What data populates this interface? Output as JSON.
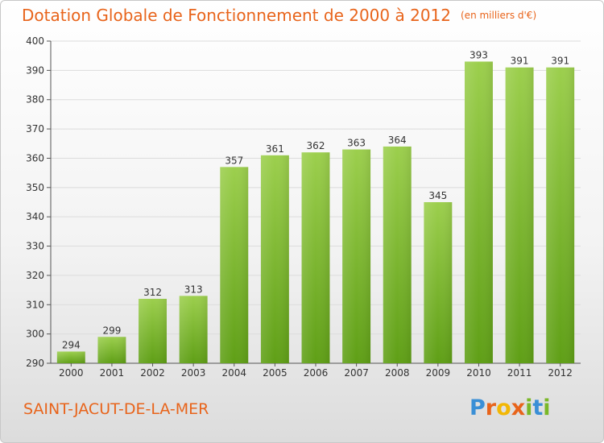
{
  "header": {
    "title": "Dotation Globale de Fonctionnement de 2000 à 2012",
    "subtitle": "(en milliers d'€)"
  },
  "footer": {
    "city": "SAINT-JACUT-DE-LA-MER"
  },
  "logo": {
    "text": "Proxiti",
    "letters": [
      {
        "char": "P",
        "color": "#3a8fd6"
      },
      {
        "char": "r",
        "color": "#e8641b"
      },
      {
        "char": "o",
        "color": "#f2b705"
      },
      {
        "char": "x",
        "color": "#e8641b"
      },
      {
        "char": "i",
        "color": "#7ab828"
      },
      {
        "char": "t",
        "color": "#3a8fd6"
      },
      {
        "char": "i",
        "color": "#7ab828"
      }
    ]
  },
  "colors": {
    "title": "#e8641b",
    "bar_light": "#9ccf4d",
    "bar_dark": "#5f9f16",
    "grid": "#dcdcdc",
    "axis": "#555555"
  },
  "chart_data": {
    "type": "bar",
    "title": "Dotation Globale de Fonctionnement de 2000 à 2012",
    "subtitle": "(en milliers d'€)",
    "categories": [
      "2000",
      "2001",
      "2002",
      "2003",
      "2004",
      "2005",
      "2006",
      "2007",
      "2008",
      "2009",
      "2010",
      "2011",
      "2012"
    ],
    "values": [
      294,
      299,
      312,
      313,
      357,
      361,
      362,
      363,
      364,
      345,
      393,
      391,
      391
    ],
    "ylim": [
      290,
      400
    ],
    "yticks": [
      290,
      300,
      310,
      320,
      330,
      340,
      350,
      360,
      370,
      380,
      390,
      400
    ],
    "grid": true,
    "xlabel": "",
    "ylabel": ""
  }
}
